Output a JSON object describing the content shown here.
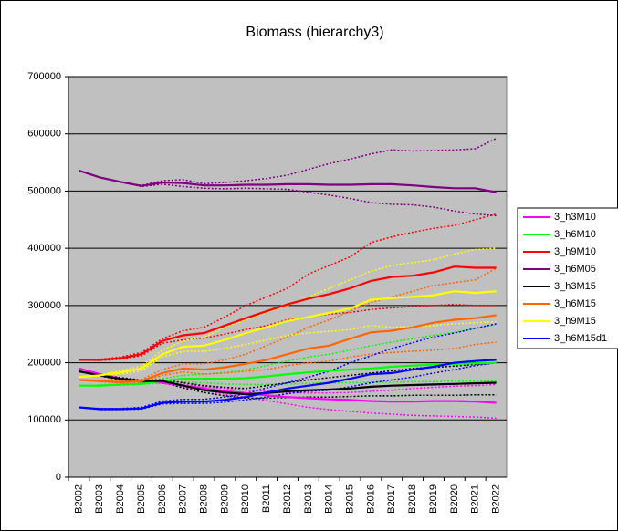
{
  "chart_data": {
    "type": "line",
    "title": "Biomass (hierarchy3)",
    "categories": [
      "B2002",
      "B2003",
      "B2004",
      "B2005",
      "B2006",
      "B2007",
      "B2008",
      "B2009",
      "B2010",
      "B2011",
      "B2012",
      "B2013",
      "B2014",
      "B2015",
      "B2016",
      "B2017",
      "B2018",
      "B2019",
      "B2020",
      "B2021",
      "B2022"
    ],
    "ylim": [
      0,
      700000
    ],
    "yticks": [
      0,
      100000,
      200000,
      300000,
      400000,
      500000,
      600000,
      700000
    ],
    "grid": true,
    "legend": "right",
    "plot_background": "#c0c0c0",
    "series": [
      {
        "name": "3_h3M10",
        "color": "#ff00ff",
        "values": [
          190000,
          180000,
          172000,
          168000,
          165000,
          160000,
          155000,
          150000,
          147000,
          143000,
          140000,
          138000,
          136000,
          135000,
          133000,
          132000,
          132000,
          133000,
          133000,
          132000,
          130000
        ],
        "upper": [
          190000,
          181000,
          173000,
          169000,
          166000,
          162000,
          158000,
          155000,
          152000,
          150000,
          148000,
          147000,
          147000,
          148000,
          150000,
          152000,
          155000,
          157000,
          159000,
          160000,
          162000
        ],
        "lower": [
          190000,
          179000,
          171000,
          167000,
          164000,
          158000,
          152000,
          145000,
          140000,
          134000,
          128000,
          122000,
          118000,
          115000,
          112000,
          110000,
          108000,
          107000,
          106000,
          105000,
          103000
        ]
      },
      {
        "name": "3_h6M10",
        "color": "#00ff00",
        "values": [
          160000,
          160000,
          162000,
          163000,
          168000,
          172000,
          172000,
          172000,
          173000,
          176000,
          180000,
          183000,
          186000,
          188000,
          190000,
          193000,
          195000,
          197000,
          198000,
          199000,
          200000
        ],
        "upper": [
          160000,
          161000,
          163000,
          165000,
          172000,
          178000,
          180000,
          183000,
          188000,
          195000,
          203000,
          210000,
          215000,
          222000,
          230000,
          236000,
          242000,
          248000,
          253000,
          260000,
          267000
        ],
        "lower": [
          160000,
          159000,
          161000,
          162000,
          165000,
          167000,
          165000,
          163000,
          162000,
          162000,
          163000,
          164000,
          165000,
          165000,
          166000,
          166000,
          167000,
          167000,
          168000,
          168000,
          168000
        ]
      },
      {
        "name": "3_h9M10",
        "color": "#ff0000",
        "values": [
          205000,
          205000,
          208000,
          215000,
          238000,
          248000,
          252000,
          265000,
          278000,
          290000,
          302000,
          312000,
          320000,
          330000,
          343000,
          350000,
          352000,
          358000,
          368000,
          366000,
          366000
        ],
        "upper": [
          205000,
          206000,
          210000,
          218000,
          242000,
          256000,
          262000,
          280000,
          300000,
          315000,
          330000,
          355000,
          370000,
          385000,
          410000,
          420000,
          428000,
          435000,
          440000,
          450000,
          460000
        ],
        "lower": [
          205000,
          204000,
          206000,
          212000,
          234000,
          240000,
          243000,
          250000,
          258000,
          265000,
          275000,
          280000,
          285000,
          288000,
          293000,
          296000,
          298000,
          300000,
          302000,
          300000,
          300000
        ]
      },
      {
        "name": "3_h6M05",
        "color": "#800080",
        "values": [
          536000,
          524000,
          516000,
          509000,
          515000,
          514000,
          510000,
          510000,
          511000,
          511000,
          512000,
          512000,
          511000,
          511000,
          512000,
          512000,
          510000,
          507000,
          505000,
          505000,
          498000
        ],
        "upper": [
          536000,
          524000,
          516000,
          510000,
          518000,
          520000,
          513000,
          515000,
          518000,
          522000,
          528000,
          538000,
          548000,
          556000,
          565000,
          572000,
          570000,
          571000,
          572000,
          574000,
          592000
        ],
        "lower": [
          536000,
          524000,
          516000,
          508000,
          512000,
          508000,
          505000,
          504000,
          505000,
          504000,
          503000,
          498000,
          493000,
          487000,
          480000,
          477000,
          476000,
          472000,
          465000,
          460000,
          457000
        ]
      },
      {
        "name": "3_h3M15",
        "color": "#000000",
        "values": [
          185000,
          178000,
          172000,
          168000,
          168000,
          160000,
          152000,
          148000,
          145000,
          147000,
          150000,
          152000,
          153000,
          155000,
          158000,
          160000,
          161000,
          162000,
          163000,
          164000,
          165000
        ],
        "upper": [
          185000,
          179000,
          174000,
          170000,
          170000,
          165000,
          160000,
          157000,
          155000,
          160000,
          165000,
          170000,
          174000,
          178000,
          182000,
          186000,
          190000,
          192000,
          194000,
          197000,
          200000
        ],
        "lower": [
          185000,
          177000,
          170000,
          166000,
          166000,
          156000,
          148000,
          142000,
          138000,
          138000,
          139000,
          140000,
          140000,
          141000,
          142000,
          142000,
          143000,
          143000,
          143000,
          144000,
          144000
        ]
      },
      {
        "name": "3_h6M15",
        "color": "#ff6600",
        "values": [
          170000,
          168000,
          166000,
          168000,
          182000,
          190000,
          188000,
          192000,
          198000,
          205000,
          215000,
          225000,
          230000,
          242000,
          253000,
          256000,
          262000,
          270000,
          275000,
          278000,
          283000
        ],
        "upper": [
          170000,
          169000,
          168000,
          171000,
          188000,
          198000,
          198000,
          205000,
          215000,
          230000,
          245000,
          262000,
          275000,
          290000,
          305000,
          315000,
          325000,
          335000,
          340000,
          345000,
          365000
        ],
        "lower": [
          170000,
          167000,
          165000,
          166000,
          178000,
          184000,
          180000,
          182000,
          185000,
          188000,
          195000,
          200000,
          203000,
          210000,
          215000,
          218000,
          220000,
          222000,
          225000,
          232000,
          236000
        ]
      },
      {
        "name": "3_h9M15",
        "color": "#ffff00",
        "values": [
          175000,
          178000,
          183000,
          190000,
          215000,
          228000,
          230000,
          240000,
          252000,
          262000,
          273000,
          280000,
          287000,
          295000,
          310000,
          313000,
          315000,
          318000,
          325000,
          322000,
          325000
        ],
        "upper": [
          175000,
          179000,
          186000,
          194000,
          222000,
          238000,
          245000,
          262000,
          275000,
          288000,
          300000,
          315000,
          330000,
          345000,
          360000,
          370000,
          375000,
          380000,
          390000,
          398000,
          400000
        ],
        "lower": [
          175000,
          177000,
          180000,
          186000,
          210000,
          220000,
          220000,
          225000,
          232000,
          240000,
          248000,
          252000,
          255000,
          258000,
          265000,
          262000,
          263000,
          265000,
          268000,
          270000,
          272000
        ]
      },
      {
        "name": "3_h6M15d1",
        "color": "#0000ff",
        "values": [
          122000,
          119000,
          119000,
          120000,
          130000,
          132000,
          132000,
          135000,
          140000,
          148000,
          155000,
          160000,
          165000,
          172000,
          180000,
          182000,
          188000,
          193000,
          200000,
          203000,
          205000
        ],
        "upper": [
          122000,
          120000,
          120000,
          122000,
          133000,
          136000,
          136000,
          140000,
          146000,
          156000,
          165000,
          175000,
          185000,
          200000,
          212000,
          225000,
          235000,
          245000,
          252000,
          260000,
          268000
        ],
        "lower": [
          122000,
          118000,
          118000,
          119000,
          128000,
          129000,
          129000,
          131000,
          135000,
          140000,
          146000,
          150000,
          152000,
          158000,
          165000,
          170000,
          175000,
          182000,
          188000,
          195000,
          200000
        ]
      }
    ]
  }
}
